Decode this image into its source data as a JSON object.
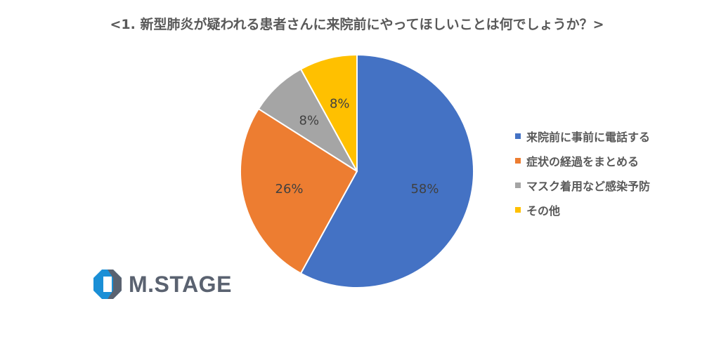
{
  "title": "<1. 新型肺炎が疑われる患者さんに来院前にやってほしいことは何でしょうか？>",
  "chart_data": {
    "type": "pie",
    "title": "<1. 新型肺炎が疑われる患者さんに来院前にやってほしいことは何でしょうか？>",
    "start": "12 o'clock, clockwise",
    "legend_position": "right",
    "slices": [
      {
        "name": "来院前に事前に電話する",
        "value": 58,
        "label": "58%",
        "color": "#4472C4"
      },
      {
        "name": "症状の経過をまとめる",
        "value": 26,
        "label": "26%",
        "color": "#ED7D31"
      },
      {
        "name": "マスク着用など感染予防",
        "value": 8,
        "label": "8%",
        "color": "#A5A5A5"
      },
      {
        "name": "その他",
        "value": 8,
        "label": "8%",
        "color": "#FFC000"
      }
    ]
  },
  "logo": {
    "text": "M.STAGE",
    "colors": {
      "blue": "#1a8fd6",
      "gray": "#5a6270"
    }
  }
}
